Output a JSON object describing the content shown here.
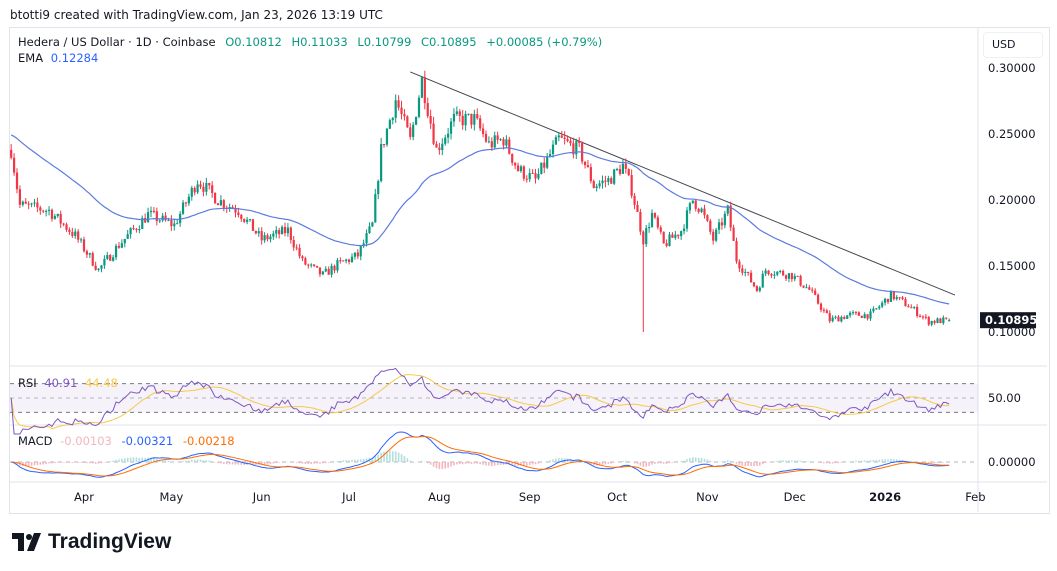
{
  "credit": "btotti9 created with TradingView.com, Jan 23, 2026 13:19 UTC",
  "legend": {
    "symbol": "Hedera / US Dollar · 1D · Coinbase",
    "open": "O0.10812",
    "high": "H0.11033",
    "low": "L0.10799",
    "close": "C0.10895",
    "change": "+0.00085 (+0.79%)"
  },
  "ema": {
    "label": "EMA",
    "value": "0.12284"
  },
  "rsi": {
    "label": "RSI",
    "value": "40.91",
    "ma_value": "44.48"
  },
  "macd": {
    "label": "MACD",
    "hist": "-0.00103",
    "macd": "-0.00321",
    "signal": "-0.00218"
  },
  "currency_button": "USD",
  "logo_text": "TradingView",
  "colors": {
    "up": "#089981",
    "down": "#f23645",
    "ema": "#5b7be0",
    "rsi": "#7e57c2",
    "rsi_ma": "#f7c948",
    "macd": "#2962ff",
    "signal": "#ff6d00",
    "trendline": "#434651",
    "hist_neg": "#f4b6bd"
  },
  "chart_data": {
    "type": "candlestick",
    "price_axis_ticks": [
      "0.30000",
      "0.25000",
      "0.20000",
      "0.15000",
      "0.10000"
    ],
    "price_axis_values": [
      0.3,
      0.25,
      0.2,
      0.15,
      0.1
    ],
    "last_price_label": "0.10895",
    "rsi_axis_label": "50.00",
    "macd_axis_label": "0.00000",
    "time_axis_labels": [
      {
        "label": "Apr",
        "date": "2025-04-01"
      },
      {
        "label": "May",
        "date": "2025-05-01"
      },
      {
        "label": "Jun",
        "date": "2025-06-01"
      },
      {
        "label": "Jul",
        "date": "2025-07-01"
      },
      {
        "label": "Aug",
        "date": "2025-08-01"
      },
      {
        "label": "Sep",
        "date": "2025-09-01"
      },
      {
        "label": "Oct",
        "date": "2025-10-01"
      },
      {
        "label": "Nov",
        "date": "2025-11-01"
      },
      {
        "label": "Dec",
        "date": "2025-12-01"
      },
      {
        "label": "2026",
        "date": "2026-01-01"
      },
      {
        "label": "Feb",
        "date": "2026-02-01"
      }
    ],
    "approx_closes": [
      [
        "2025-03-07",
        0.238
      ],
      [
        "2025-03-10",
        0.196
      ],
      [
        "2025-03-20",
        0.192
      ],
      [
        "2025-03-29",
        0.173
      ],
      [
        "2025-04-06",
        0.147
      ],
      [
        "2025-04-13",
        0.166
      ],
      [
        "2025-04-23",
        0.189
      ],
      [
        "2025-05-02",
        0.181
      ],
      [
        "2025-05-10",
        0.215
      ],
      [
        "2025-05-17",
        0.2
      ],
      [
        "2025-05-24",
        0.192
      ],
      [
        "2025-06-01",
        0.17
      ],
      [
        "2025-06-10",
        0.177
      ],
      [
        "2025-06-15",
        0.153
      ],
      [
        "2025-06-22",
        0.143
      ],
      [
        "2025-06-27",
        0.151
      ],
      [
        "2025-07-04",
        0.158
      ],
      [
        "2025-07-09",
        0.181
      ],
      [
        "2025-07-12",
        0.238
      ],
      [
        "2025-07-17",
        0.276
      ],
      [
        "2025-07-22",
        0.245
      ],
      [
        "2025-07-26",
        0.291
      ],
      [
        "2025-07-31",
        0.238
      ],
      [
        "2025-08-06",
        0.261
      ],
      [
        "2025-08-13",
        0.261
      ],
      [
        "2025-08-18",
        0.242
      ],
      [
        "2025-08-23",
        0.246
      ],
      [
        "2025-08-28",
        0.223
      ],
      [
        "2025-09-03",
        0.215
      ],
      [
        "2025-09-11",
        0.246
      ],
      [
        "2025-09-18",
        0.238
      ],
      [
        "2025-09-23",
        0.211
      ],
      [
        "2025-09-28",
        0.215
      ],
      [
        "2025-10-03",
        0.226
      ],
      [
        "2025-10-06",
        0.208
      ],
      [
        "2025-10-10",
        0.17
      ],
      [
        "2025-10-13",
        0.189
      ],
      [
        "2025-10-17",
        0.166
      ],
      [
        "2025-10-23",
        0.177
      ],
      [
        "2025-10-27",
        0.2
      ],
      [
        "2025-10-30",
        0.192
      ],
      [
        "2025-11-03",
        0.17
      ],
      [
        "2025-11-08",
        0.192
      ],
      [
        "2025-11-11",
        0.155
      ],
      [
        "2025-11-18",
        0.132
      ],
      [
        "2025-11-21",
        0.147
      ],
      [
        "2025-11-30",
        0.143
      ],
      [
        "2025-12-06",
        0.132
      ],
      [
        "2025-12-13",
        0.109
      ],
      [
        "2025-12-20",
        0.113
      ],
      [
        "2025-12-27",
        0.113
      ],
      [
        "2026-01-03",
        0.128
      ],
      [
        "2026-01-09",
        0.12
      ],
      [
        "2026-01-16",
        0.108
      ],
      [
        "2026-01-23",
        0.10895
      ]
    ],
    "oct10_low": 0.1,
    "trendline": [
      [
        "2025-07-22",
        0.297
      ],
      [
        "2026-01-25",
        0.128
      ]
    ],
    "ema_last": 0.12284,
    "rsi_levels": [
      70,
      50,
      30
    ]
  }
}
